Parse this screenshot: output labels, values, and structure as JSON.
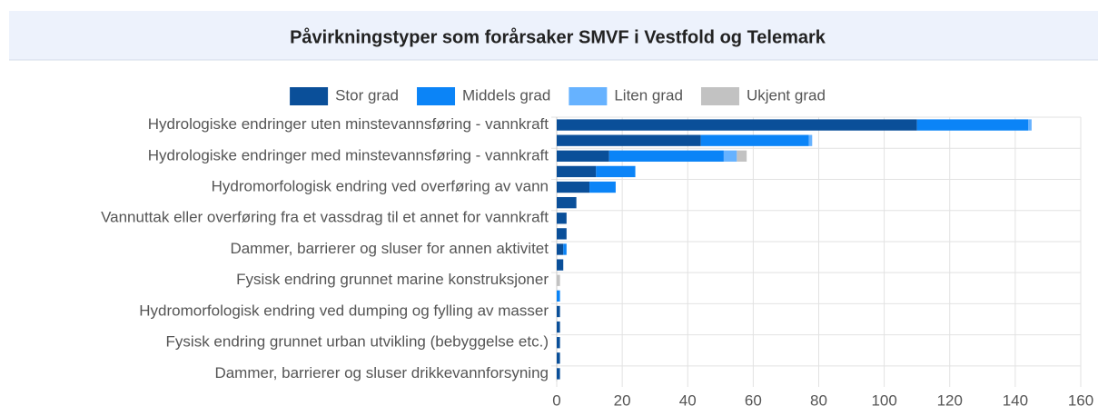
{
  "chart_data": {
    "type": "bar",
    "orientation": "horizontal",
    "stacked": true,
    "title": "Påvirkningstyper som forårsaker SMVF i Vestfold og Telemark",
    "categories": [
      "Hydrologiske endringer uten minstevannsføring - vannkraft",
      null,
      "Hydrologiske endringer med minstevannsføring - vannkraft",
      null,
      "Hydromorfologisk endring ved overføring av vann",
      null,
      "Vannuttak eller overføring fra et vassdrag til et annet for vannkraft",
      null,
      "Dammer, barrierer og sluser for annen aktivitet",
      null,
      "Fysisk endring grunnet marine konstruksjoner",
      null,
      "Hydromorfologisk endring ved dumping og fylling av masser",
      null,
      "Fysisk endring grunnet urban utvikling (bebyggelse etc.)",
      null,
      "Dammer, barrierer og sluser drikkevannforsyning"
    ],
    "series": [
      {
        "name": "Stor grad",
        "color": "#0a4f99",
        "values": [
          110,
          44,
          16,
          12,
          10,
          6,
          3,
          3,
          2,
          2,
          0,
          0,
          1,
          1,
          1,
          1,
          1
        ]
      },
      {
        "name": "Middels grad",
        "color": "#0b84f7",
        "values": [
          34,
          33,
          35,
          12,
          8,
          0,
          0,
          0,
          1,
          0,
          0,
          1,
          0,
          0,
          0,
          0,
          0
        ]
      },
      {
        "name": "Liten grad",
        "color": "#66b2ff",
        "values": [
          1,
          1,
          4,
          0,
          0,
          0,
          0,
          0,
          0,
          0,
          0,
          0,
          0,
          0,
          0,
          0,
          0
        ]
      },
      {
        "name": "Ukjent grad",
        "color": "#c2c2c2",
        "values": [
          0,
          0,
          3,
          0,
          0,
          0,
          0,
          0,
          0,
          0,
          1,
          0,
          0,
          0,
          0,
          0,
          0
        ]
      }
    ],
    "xlim": [
      0,
      160
    ],
    "xticks": [
      0,
      20,
      40,
      60,
      80,
      100,
      120,
      140,
      160
    ],
    "grid": true,
    "legend": "top"
  }
}
